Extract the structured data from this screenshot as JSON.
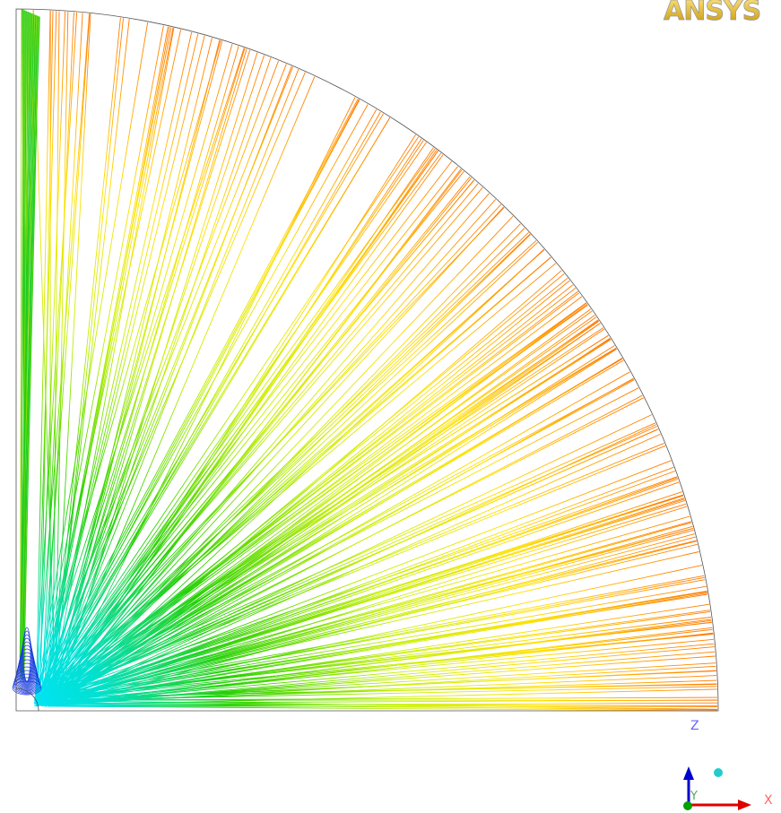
{
  "logo": "ANSYS",
  "axes": {
    "z": "Z",
    "y": "Y",
    "x": "X"
  }
}
